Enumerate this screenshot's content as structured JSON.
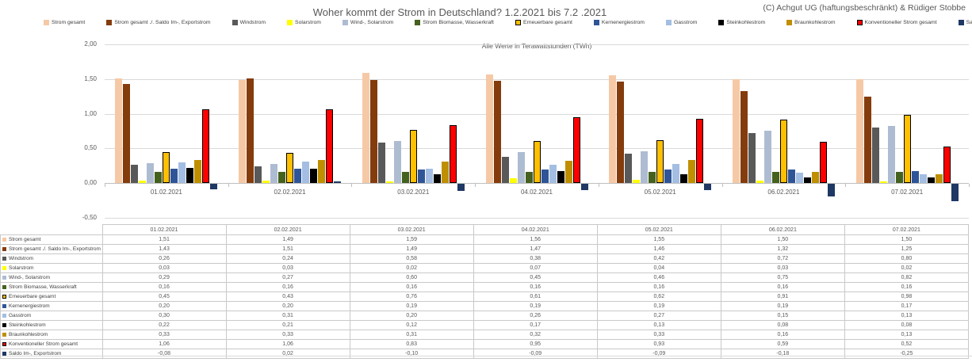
{
  "header": {
    "title": "Woher kommt der Strom in Deutschland? 1.2.2021 bis 7.2 .2021",
    "copyright": "(C) Achgut UG (haftungsbeschränkt) & Rüdiger Stobbe"
  },
  "chart_data": {
    "type": "bar",
    "title": "Woher kommt der Strom in Deutschland? 1.2.2021 bis 7.2 .2021",
    "subtitle": "Alle Werte in Terawattstunden (TWh)",
    "unit": "TWh",
    "categories": [
      "01.02.2021",
      "02.02.2021",
      "03.02.2021",
      "04.02.2021",
      "05.02.2021",
      "06.02.2021",
      "07.02.2021"
    ],
    "series": [
      {
        "name": "Strom gesamt",
        "color": "#F6C9A6",
        "values": [
          1.51,
          1.49,
          1.59,
          1.56,
          1.55,
          1.5,
          1.5
        ]
      },
      {
        "name": "Strom gesamt ./. Saldo Im-, Exportstrom",
        "color": "#843C0C",
        "values": [
          1.43,
          1.51,
          1.49,
          1.47,
          1.46,
          1.32,
          1.25
        ]
      },
      {
        "name": "Windstrom",
        "color": "#595959",
        "values": [
          0.26,
          0.24,
          0.58,
          0.38,
          0.42,
          0.72,
          0.8
        ]
      },
      {
        "name": "Solarstrom",
        "color": "#FFFF00",
        "values": [
          0.03,
          0.03,
          0.02,
          0.07,
          0.04,
          0.03,
          0.02
        ]
      },
      {
        "name": "Wind-, Solarstrom",
        "color": "#AEBCD2",
        "values": [
          0.29,
          0.27,
          0.6,
          0.45,
          0.46,
          0.75,
          0.82
        ]
      },
      {
        "name": "Strom Biomasse, Wasserkraft",
        "color": "#44611E",
        "values": [
          0.16,
          0.16,
          0.16,
          0.16,
          0.16,
          0.16,
          0.16
        ]
      },
      {
        "name": "Erneuerbare gesamt",
        "color": "#FFC000",
        "border": "#000000",
        "values": [
          0.45,
          0.43,
          0.76,
          0.61,
          0.62,
          0.91,
          0.98
        ]
      },
      {
        "name": "Kernenergiestrom",
        "color": "#2F5597",
        "values": [
          0.2,
          0.2,
          0.19,
          0.19,
          0.19,
          0.19,
          0.17
        ]
      },
      {
        "name": "Gasstrom",
        "color": "#A3BEE2",
        "values": [
          0.3,
          0.31,
          0.2,
          0.26,
          0.27,
          0.15,
          0.13
        ]
      },
      {
        "name": "Steinkohlestrom",
        "color": "#000000",
        "values": [
          0.22,
          0.21,
          0.12,
          0.17,
          0.13,
          0.08,
          0.08
        ]
      },
      {
        "name": "Braunkohlestrom",
        "color": "#BF8F00",
        "values": [
          0.33,
          0.33,
          0.31,
          0.32,
          0.33,
          0.16,
          0.13
        ]
      },
      {
        "name": "Konventioneller Strom gesamt",
        "color": "#FF0000",
        "border": "#000000",
        "values": [
          1.06,
          1.06,
          0.83,
          0.95,
          0.93,
          0.59,
          0.52
        ]
      },
      {
        "name": "Saldo Im-, Exportstrom",
        "color": "#1F3864",
        "values": [
          -0.08,
          0.02,
          -0.1,
          -0.09,
          -0.09,
          -0.18,
          -0.25
        ]
      }
    ],
    "ylim": [
      -0.5,
      2.0
    ],
    "yticks": [
      2.0,
      1.5,
      1.0,
      0.5,
      0.0,
      -0.5
    ],
    "ytick_labels": [
      "2,00",
      "1,50",
      "1,00",
      "0,50",
      "0,00",
      "-0,50"
    ],
    "grid": true,
    "legend_position": "top"
  },
  "table": {
    "corner_label": "",
    "columns": [
      "01.02.2021",
      "02.02.2021",
      "03.02.2021",
      "04.02.2021",
      "05.02.2021",
      "06.02.2021",
      "07.02.2021"
    ],
    "rows": [
      {
        "label": "Strom gesamt",
        "color": "#F6C9A6",
        "values": [
          "1,51",
          "1,49",
          "1,59",
          "1,56",
          "1,55",
          "1,50",
          "1,50"
        ]
      },
      {
        "label": "Strom gesamt ./. Saldo Im-, Exportstrom",
        "color": "#843C0C",
        "values": [
          "1,43",
          "1,51",
          "1,49",
          "1,47",
          "1,46",
          "1,32",
          "1,25"
        ]
      },
      {
        "label": "Windstrom",
        "color": "#595959",
        "values": [
          "0,26",
          "0,24",
          "0,58",
          "0,38",
          "0,42",
          "0,72",
          "0,80"
        ]
      },
      {
        "label": "Solarstrom",
        "color": "#FFFF00",
        "values": [
          "0,03",
          "0,03",
          "0,02",
          "0,07",
          "0,04",
          "0,03",
          "0,02"
        ]
      },
      {
        "label": "Wind-, Solarstrom",
        "color": "#AEBCD2",
        "values": [
          "0,29",
          "0,27",
          "0,60",
          "0,45",
          "0,46",
          "0,75",
          "0,82"
        ]
      },
      {
        "label": "Strom Biomasse, Wasserkraft",
        "color": "#44611E",
        "values": [
          "0,16",
          "0,16",
          "0,16",
          "0,16",
          "0,16",
          "0,16",
          "0,16"
        ]
      },
      {
        "label": "Erneuerbare gesamt",
        "color": "#FFC000",
        "border": "#000000",
        "values": [
          "0,45",
          "0,43",
          "0,76",
          "0,61",
          "0,62",
          "0,91",
          "0,98"
        ]
      },
      {
        "label": "Kernenergiestrom",
        "color": "#2F5597",
        "values": [
          "0,20",
          "0,20",
          "0,19",
          "0,19",
          "0,19",
          "0,19",
          "0,17"
        ]
      },
      {
        "label": "Gasstrom",
        "color": "#A3BEE2",
        "values": [
          "0,30",
          "0,31",
          "0,20",
          "0,26",
          "0,27",
          "0,15",
          "0,13"
        ]
      },
      {
        "label": "Steinkohlestrom",
        "color": "#000000",
        "values": [
          "0,22",
          "0,21",
          "0,12",
          "0,17",
          "0,13",
          "0,08",
          "0,08"
        ]
      },
      {
        "label": "Braunkohlestrom",
        "color": "#BF8F00",
        "values": [
          "0,33",
          "0,33",
          "0,31",
          "0,32",
          "0,33",
          "0,16",
          "0,13"
        ]
      },
      {
        "label": "Konventioneller Strom gesamt",
        "color": "#FF0000",
        "border": "#000000",
        "values": [
          "1,06",
          "1,06",
          "0,83",
          "0,95",
          "0,93",
          "0,59",
          "0,52"
        ]
      },
      {
        "label": "Saldo Im-, Exportstrom",
        "color": "#1F3864",
        "values": [
          "-0,08",
          "0,02",
          "-0,10",
          "-0,09",
          "-0,09",
          "-0,18",
          "-0,25"
        ]
      }
    ]
  }
}
